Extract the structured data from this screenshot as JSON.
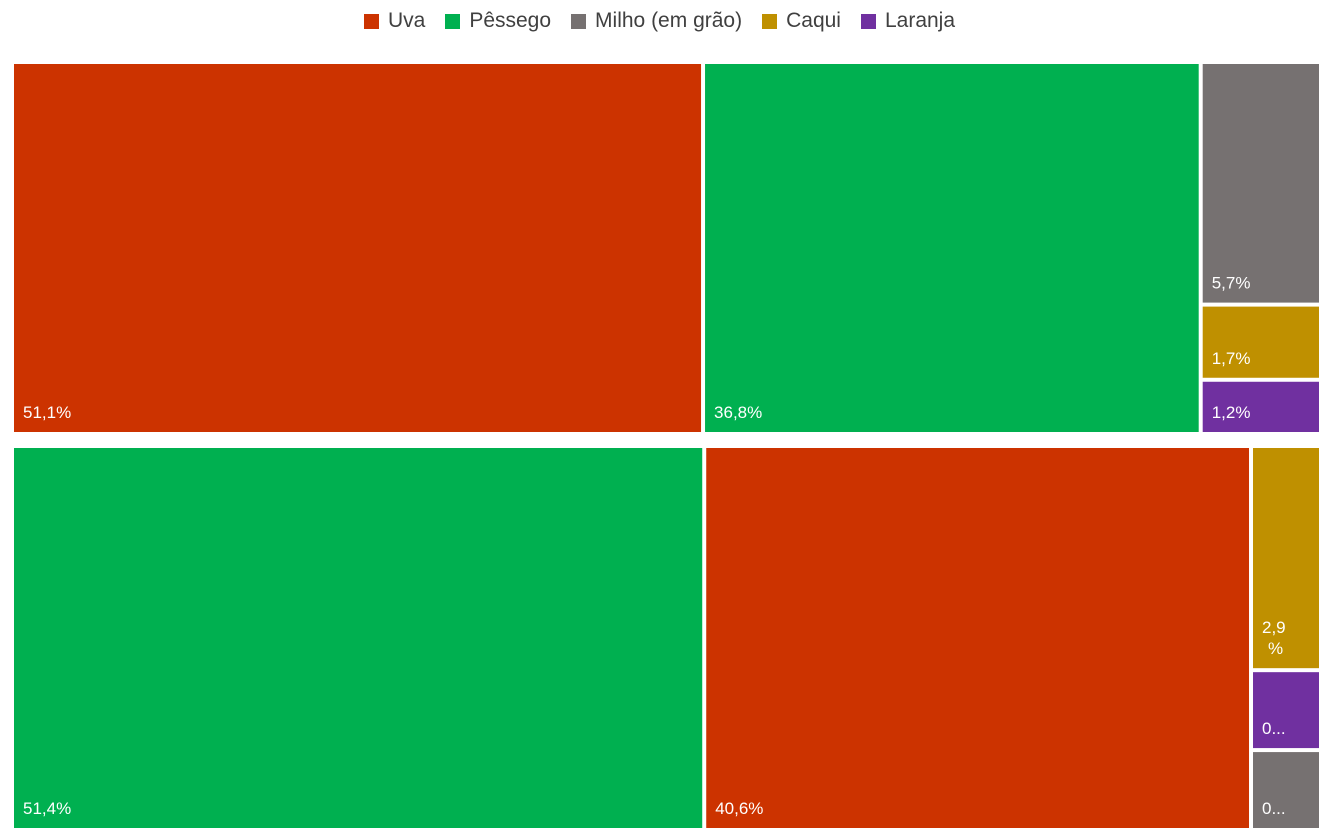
{
  "chart_data": {
    "type": "treemap",
    "legend": {
      "placement": "top",
      "items": [
        {
          "name": "Uva",
          "color": "#CC3300"
        },
        {
          "name": "Pêssego",
          "color": "#00B050"
        },
        {
          "name": "Milho (em grão)",
          "color": "#767171"
        },
        {
          "name": "Caqui",
          "color": "#BF9000"
        },
        {
          "name": "Laranja",
          "color": "#7030A0"
        }
      ]
    },
    "groups": [
      {
        "items": [
          {
            "category": "Uva",
            "value": 51.1,
            "label": "51,1%"
          },
          {
            "category": "Pêssego",
            "value": 36.8,
            "label": "36,8%"
          },
          {
            "category": "Milho (em grão)",
            "value": 5.7,
            "label": "5,7%"
          },
          {
            "category": "Caqui",
            "value": 1.7,
            "label": "1,7%"
          },
          {
            "category": "Laranja",
            "value": 1.2,
            "label": "1,2%"
          }
        ]
      },
      {
        "items": [
          {
            "category": "Pêssego",
            "value": 51.4,
            "label": "51,4%"
          },
          {
            "category": "Uva",
            "value": 40.6,
            "label": "40,6%"
          },
          {
            "category": "Caqui",
            "value": 2.9,
            "label": "2,9\n%"
          },
          {
            "category": "Laranja",
            "value": 1.0,
            "label": "0..."
          },
          {
            "category": "Milho (em grão)",
            "value": 1.0,
            "label": "0..."
          }
        ]
      }
    ]
  }
}
